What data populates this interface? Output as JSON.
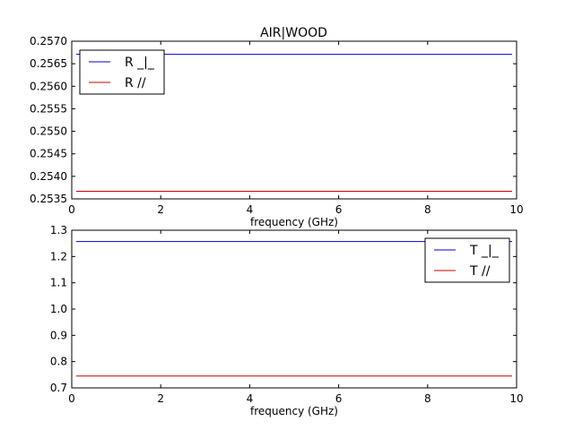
{
  "colors": {
    "series_perp": "#0000cc",
    "series_par": "#cc0000"
  },
  "chart_data": [
    {
      "type": "line",
      "title": "AIR|WOOD",
      "xlabel": "frequency (GHz)",
      "ylabel": "",
      "xlim": [
        0,
        10
      ],
      "ylim": [
        0.2535,
        0.257
      ],
      "xticks": [
        "0",
        "2",
        "4",
        "6",
        "8",
        "10"
      ],
      "yticks": [
        "0.2535",
        "0.2540",
        "0.2545",
        "0.2550",
        "0.2555",
        "0.2560",
        "0.2565",
        "0.2570"
      ],
      "legend_position": "top-left",
      "grid": false,
      "series": [
        {
          "name": "R _|_",
          "x": [
            0.1,
            9.9
          ],
          "values": [
            0.25671,
            0.25671
          ]
        },
        {
          "name": "R //",
          "x": [
            0.1,
            9.9
          ],
          "values": [
            0.25367,
            0.25367
          ]
        }
      ]
    },
    {
      "type": "line",
      "title": "",
      "xlabel": "frequency (GHz)",
      "ylabel": "",
      "xlim": [
        0,
        10
      ],
      "ylim": [
        0.7,
        1.3
      ],
      "xticks": [
        "0",
        "2",
        "4",
        "6",
        "8",
        "10"
      ],
      "yticks": [
        "0.7",
        "0.8",
        "0.9",
        "1.0",
        "1.1",
        "1.2",
        "1.3"
      ],
      "legend_position": "top-right",
      "grid": false,
      "series": [
        {
          "name": "T _|_",
          "x": [
            0.1,
            9.9
          ],
          "values": [
            1.257,
            1.257
          ]
        },
        {
          "name": "T //",
          "x": [
            0.1,
            9.9
          ],
          "values": [
            0.745,
            0.745
          ]
        }
      ]
    }
  ]
}
